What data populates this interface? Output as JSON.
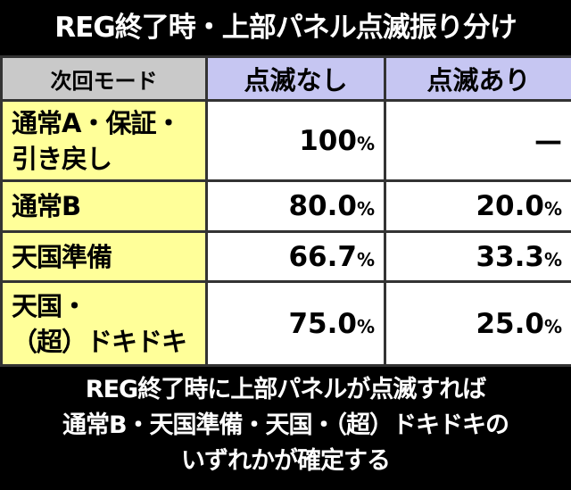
{
  "header": {
    "title": "REG終了時・上部パネル点滅振り分け"
  },
  "table": {
    "columns": [
      "次回モード",
      "点滅なし",
      "点滅あり"
    ],
    "rows": [
      {
        "mode": [
          "通常A・保証・",
          "引き戻し"
        ],
        "cells": [
          {
            "number": "100",
            "unit": "%"
          },
          {
            "text": "—"
          }
        ]
      },
      {
        "mode": [
          "通常B"
        ],
        "cells": [
          {
            "number": "80.0",
            "unit": "%"
          },
          {
            "number": "20.0",
            "unit": "%"
          }
        ]
      },
      {
        "mode": [
          "天国準備"
        ],
        "cells": [
          {
            "number": "66.7",
            "unit": "%"
          },
          {
            "number": "33.3",
            "unit": "%"
          }
        ]
      },
      {
        "mode": [
          "天国・",
          "（超）ドキドキ"
        ],
        "cells": [
          {
            "number": "75.0",
            "unit": "%"
          },
          {
            "number": "25.0",
            "unit": "%"
          }
        ]
      }
    ]
  },
  "footer": {
    "lines": [
      "REG終了時に上部パネルが点滅すれば",
      "通常B・天国準備・天国・（超）ドキドキの",
      "いずれかが確定する"
    ]
  }
}
